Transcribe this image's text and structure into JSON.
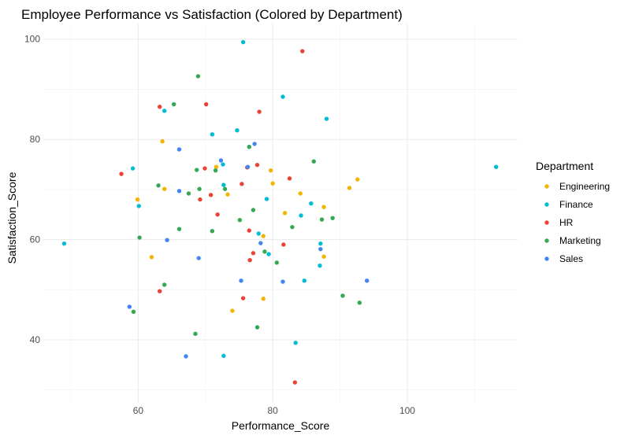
{
  "chart_data": {
    "type": "scatter",
    "title": "Employee Performance vs Satisfaction (Colored by Department)",
    "xlabel": "Performance_Score",
    "ylabel": "Satisfaction_Score",
    "xlim": [
      45.9,
      116.4
    ],
    "ylim": [
      25.4,
      103.1
    ],
    "x_ticks": [
      60,
      80,
      100
    ],
    "y_ticks": [
      40,
      60,
      80,
      100
    ],
    "x_minor": [
      50,
      70,
      90,
      110
    ],
    "y_minor": [
      30,
      50,
      70,
      90
    ],
    "grid": true,
    "legend": {
      "title": "Department",
      "position": "right"
    },
    "series": [
      {
        "name": "Engineering",
        "color": "#F4B400",
        "points": [
          [
            63.6,
            79.6
          ],
          [
            71.6,
            74.5
          ],
          [
            79.7,
            73.8
          ],
          [
            80.0,
            71.2
          ],
          [
            92.6,
            72.0
          ],
          [
            91.4,
            70.3
          ],
          [
            84.1,
            69.2
          ],
          [
            73.3,
            69.0
          ],
          [
            63.9,
            70.1
          ],
          [
            59.9,
            68.0
          ],
          [
            87.6,
            66.5
          ],
          [
            81.8,
            65.3
          ],
          [
            78.6,
            60.7
          ],
          [
            62.0,
            56.5
          ],
          [
            87.6,
            56.6
          ],
          [
            78.6,
            48.2
          ],
          [
            74.0,
            45.8
          ]
        ]
      },
      {
        "name": "Finance",
        "color": "#00BCD4",
        "points": [
          [
            75.6,
            99.4
          ],
          [
            81.5,
            88.5
          ],
          [
            63.9,
            85.7
          ],
          [
            88.0,
            84.1
          ],
          [
            74.7,
            81.8
          ],
          [
            71.0,
            81.0
          ],
          [
            72.6,
            75.0
          ],
          [
            59.2,
            74.2
          ],
          [
            113.2,
            74.5
          ],
          [
            72.7,
            70.9
          ],
          [
            79.1,
            68.1
          ],
          [
            85.7,
            67.2
          ],
          [
            60.1,
            66.7
          ],
          [
            84.2,
            64.8
          ],
          [
            77.9,
            61.2
          ],
          [
            49.0,
            59.2
          ],
          [
            87.1,
            59.2
          ],
          [
            79.4,
            57.1
          ],
          [
            87.0,
            54.8
          ],
          [
            84.7,
            51.8
          ],
          [
            83.4,
            39.4
          ],
          [
            72.7,
            36.8
          ]
        ]
      },
      {
        "name": "HR",
        "color": "#EA4335",
        "points": [
          [
            84.4,
            97.6
          ],
          [
            63.2,
            86.5
          ],
          [
            70.1,
            87.0
          ],
          [
            78.0,
            85.5
          ],
          [
            76.2,
            74.4
          ],
          [
            77.7,
            74.9
          ],
          [
            57.5,
            73.1
          ],
          [
            69.9,
            74.2
          ],
          [
            82.5,
            72.2
          ],
          [
            75.4,
            71.1
          ],
          [
            70.8,
            68.9
          ],
          [
            69.2,
            68.0
          ],
          [
            71.8,
            65.0
          ],
          [
            76.5,
            61.8
          ],
          [
            81.6,
            59.0
          ],
          [
            77.1,
            57.3
          ],
          [
            76.6,
            55.9
          ],
          [
            63.2,
            49.7
          ],
          [
            75.6,
            48.3
          ],
          [
            83.3,
            31.5
          ]
        ]
      },
      {
        "name": "Marketing",
        "color": "#34A853",
        "points": [
          [
            68.9,
            92.6
          ],
          [
            65.3,
            87.0
          ],
          [
            76.5,
            78.5
          ],
          [
            86.1,
            75.6
          ],
          [
            68.7,
            73.9
          ],
          [
            71.5,
            73.8
          ],
          [
            63.0,
            70.8
          ],
          [
            72.9,
            70.1
          ],
          [
            69.1,
            70.1
          ],
          [
            67.5,
            69.2
          ],
          [
            77.1,
            65.9
          ],
          [
            75.1,
            63.9
          ],
          [
            87.3,
            64.0
          ],
          [
            88.9,
            64.3
          ],
          [
            82.9,
            62.5
          ],
          [
            66.1,
            62.1
          ],
          [
            71.0,
            61.7
          ],
          [
            60.2,
            60.4
          ],
          [
            78.8,
            57.6
          ],
          [
            80.6,
            55.4
          ],
          [
            63.9,
            51.0
          ],
          [
            90.4,
            48.8
          ],
          [
            92.9,
            47.4
          ],
          [
            59.3,
            45.6
          ],
          [
            77.7,
            42.5
          ],
          [
            68.5,
            41.2
          ]
        ]
      },
      {
        "name": "Sales",
        "color": "#4285F4",
        "points": [
          [
            66.1,
            78.0
          ],
          [
            77.3,
            79.1
          ],
          [
            72.3,
            75.8
          ],
          [
            76.3,
            74.5
          ],
          [
            66.1,
            69.7
          ],
          [
            64.3,
            59.9
          ],
          [
            78.2,
            59.3
          ],
          [
            87.1,
            58.1
          ],
          [
            69.0,
            56.3
          ],
          [
            75.3,
            51.8
          ],
          [
            81.5,
            51.6
          ],
          [
            94.0,
            51.8
          ],
          [
            58.7,
            46.6
          ],
          [
            67.1,
            36.7
          ]
        ]
      }
    ]
  }
}
